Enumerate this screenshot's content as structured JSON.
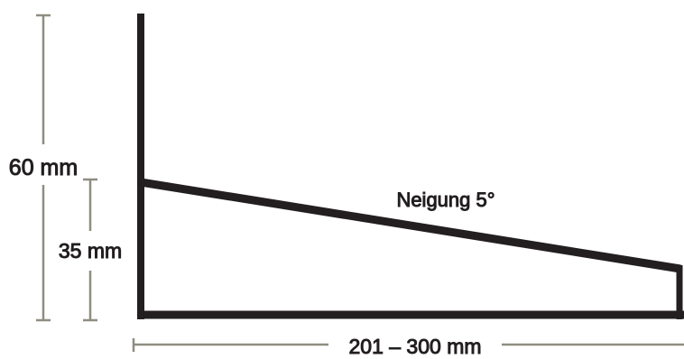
{
  "dimensions": {
    "total_height": "60 mm",
    "front_height": "35 mm",
    "depth": "201 – 300 mm",
    "slope": "Neigung 5°"
  },
  "colors": {
    "profile": "#231f20",
    "dimension_line": "#8f8d80",
    "text": "#231f20"
  }
}
